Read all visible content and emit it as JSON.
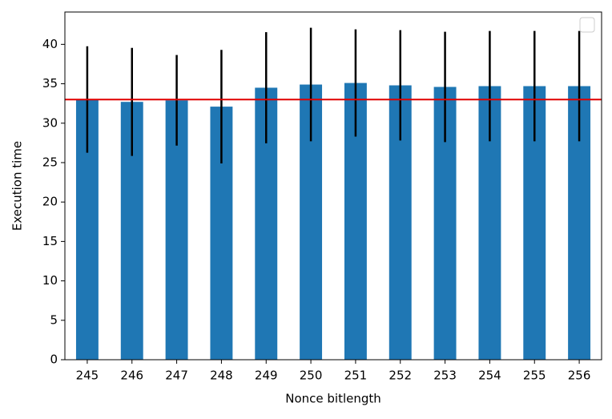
{
  "chart_data": {
    "type": "bar",
    "x_label": "Nonce bitlength",
    "y_label": "Execution time",
    "categories": [
      "245",
      "246",
      "247",
      "248",
      "249",
      "250",
      "251",
      "252",
      "253",
      "254",
      "255",
      "256"
    ],
    "values": [
      33.0,
      32.7,
      32.9,
      32.1,
      34.5,
      34.9,
      35.1,
      34.8,
      34.6,
      34.7,
      34.7,
      34.7
    ],
    "errors": [
      6.75,
      6.85,
      5.75,
      7.2,
      7.05,
      7.2,
      6.8,
      7.0,
      7.0,
      7.0,
      7.0,
      7.0
    ],
    "color": "#1f77b4",
    "error_color": "#000000",
    "hline": 33.0,
    "hline_color": "#e00000",
    "ylim": [
      0,
      44.1
    ],
    "yticks": [
      0,
      5,
      10,
      15,
      20,
      25,
      30,
      35,
      40
    ],
    "grid": false
  }
}
